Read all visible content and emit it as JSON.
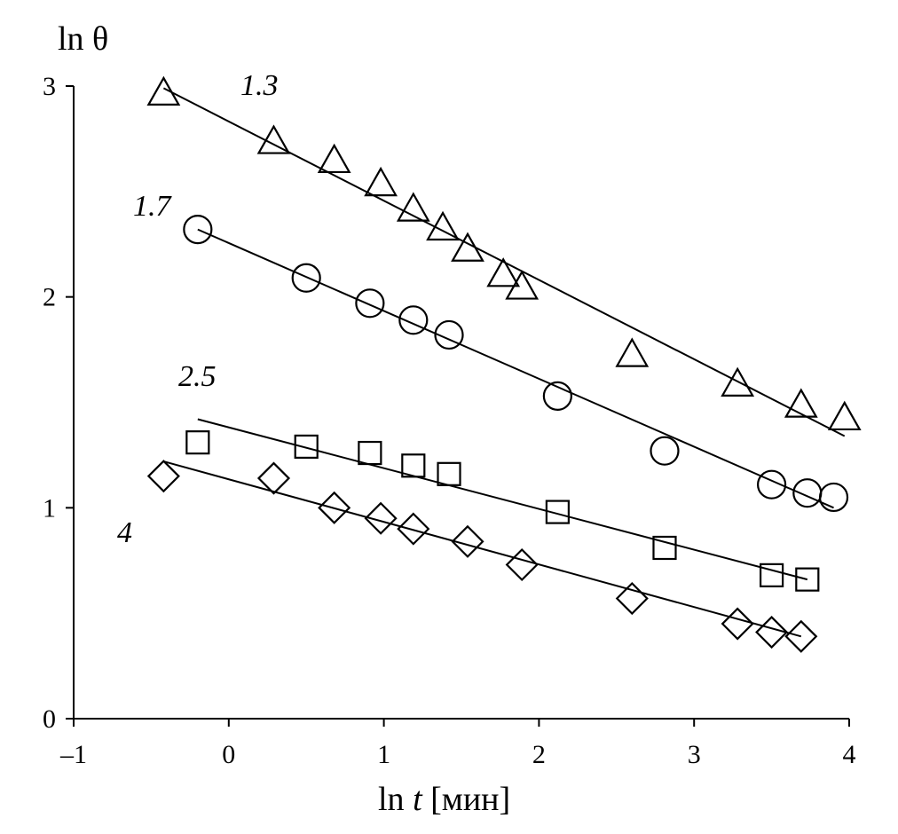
{
  "chart_data": {
    "type": "scatter",
    "title": "",
    "xlabel": {
      "prefix": "ln ",
      "var": "t",
      "suffix": " [мин]"
    },
    "ylabel": "ln θ",
    "xlim": [
      -1,
      4
    ],
    "ylim": [
      0,
      3
    ],
    "x_ticks": [
      -1,
      0,
      1,
      2,
      3,
      4
    ],
    "x_tick_labels": [
      "–1",
      "0",
      "1",
      "2",
      "3",
      "4"
    ],
    "y_ticks": [
      0,
      1,
      2,
      3
    ],
    "y_tick_labels": [
      "0",
      "1",
      "2",
      "3"
    ],
    "grid": false,
    "legend": "none",
    "series": [
      {
        "name": "1.3",
        "marker": "triangle",
        "points": [
          [
            -0.42,
            2.96
          ],
          [
            0.29,
            2.73
          ],
          [
            0.68,
            2.64
          ],
          [
            0.98,
            2.53
          ],
          [
            1.19,
            2.41
          ],
          [
            1.38,
            2.32
          ],
          [
            1.54,
            2.22
          ],
          [
            1.77,
            2.1
          ],
          [
            1.89,
            2.04
          ],
          [
            2.6,
            1.72
          ],
          [
            3.28,
            1.58
          ],
          [
            3.69,
            1.48
          ],
          [
            3.97,
            1.42
          ]
        ],
        "fit": [
          [
            -0.42,
            2.99
          ],
          [
            3.97,
            1.34
          ]
        ]
      },
      {
        "name": "1.7",
        "marker": "circle",
        "points": [
          [
            -0.2,
            2.32
          ],
          [
            0.5,
            2.09
          ],
          [
            0.91,
            1.97
          ],
          [
            1.19,
            1.89
          ],
          [
            1.42,
            1.82
          ],
          [
            2.12,
            1.53
          ],
          [
            2.81,
            1.27
          ],
          [
            3.5,
            1.11
          ],
          [
            3.73,
            1.07
          ],
          [
            3.9,
            1.05
          ]
        ],
        "fit": [
          [
            -0.2,
            2.32
          ],
          [
            3.9,
            1.0
          ]
        ]
      },
      {
        "name": "2.5",
        "marker": "square",
        "points": [
          [
            -0.2,
            1.31
          ],
          [
            0.5,
            1.29
          ],
          [
            0.91,
            1.26
          ],
          [
            1.19,
            1.2
          ],
          [
            1.42,
            1.16
          ],
          [
            2.12,
            0.98
          ],
          [
            2.81,
            0.81
          ],
          [
            3.5,
            0.68
          ],
          [
            3.73,
            0.66
          ]
        ],
        "fit": [
          [
            -0.2,
            1.42
          ],
          [
            3.73,
            0.66
          ]
        ]
      },
      {
        "name": "4",
        "marker": "diamond",
        "points": [
          [
            -0.42,
            1.15
          ],
          [
            0.29,
            1.14
          ],
          [
            0.68,
            1.0
          ],
          [
            0.98,
            0.95
          ],
          [
            1.19,
            0.9
          ],
          [
            1.54,
            0.84
          ],
          [
            1.89,
            0.73
          ],
          [
            2.6,
            0.57
          ],
          [
            3.28,
            0.45
          ],
          [
            3.5,
            0.41
          ],
          [
            3.69,
            0.39
          ]
        ],
        "fit": [
          [
            -0.42,
            1.22
          ],
          [
            3.69,
            0.39
          ]
        ]
      }
    ]
  }
}
